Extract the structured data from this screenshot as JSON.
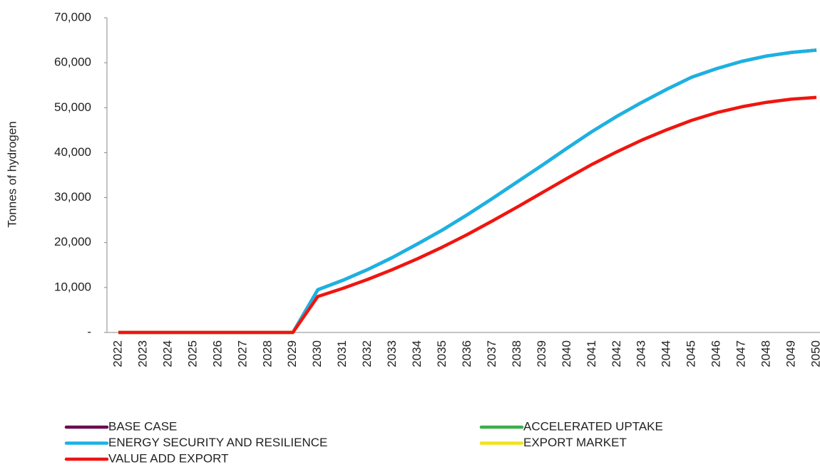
{
  "chart_data": {
    "type": "line",
    "y_label": "Tonnes of hydrogen",
    "categories": [
      "2022",
      "2023",
      "2024",
      "2025",
      "2026",
      "2027",
      "2028",
      "2029",
      "2030",
      "2031",
      "2032",
      "2033",
      "2034",
      "2035",
      "2036",
      "2037",
      "2038",
      "2039",
      "2040",
      "2041",
      "2042",
      "2043",
      "2044",
      "2045",
      "2046",
      "2047",
      "2048",
      "2049",
      "2050"
    ],
    "series": [
      {
        "name": "BASE CASE",
        "color": "#6b0d4f",
        "values": [
          0,
          0,
          0,
          0,
          0,
          0,
          0,
          0,
          9500,
          11600,
          14000,
          16700,
          19700,
          22800,
          26200,
          29800,
          33500,
          37200,
          41000,
          44700,
          48100,
          51200,
          54100,
          56800,
          58700,
          60300,
          61500,
          62300,
          62800
        ]
      },
      {
        "name": "ACCELERATED UPTAKE",
        "color": "#3cae4c",
        "values": [
          0,
          0,
          0,
          0,
          0,
          0,
          0,
          0,
          9500,
          11600,
          14000,
          16700,
          19700,
          22800,
          26200,
          29800,
          33500,
          37200,
          41000,
          44700,
          48100,
          51200,
          54100,
          56800,
          58700,
          60300,
          61500,
          62300,
          62800
        ]
      },
      {
        "name": "ENERGY SECURITY AND RESILIENCE",
        "color": "#19b2e6",
        "values": [
          0,
          0,
          0,
          0,
          0,
          0,
          0,
          0,
          9500,
          11600,
          14000,
          16700,
          19700,
          22800,
          26200,
          29800,
          33500,
          37200,
          41000,
          44700,
          48100,
          51200,
          54100,
          56800,
          58700,
          60300,
          61500,
          62300,
          62800
        ]
      },
      {
        "name": "EXPORT MARKET",
        "color": "#f2e21a",
        "values": [
          0,
          0,
          0,
          0,
          0,
          0,
          0,
          0,
          8000,
          9800,
          11800,
          14000,
          16400,
          19000,
          21800,
          24800,
          27900,
          31100,
          34300,
          37400,
          40200,
          42800,
          45100,
          47200,
          48900,
          50200,
          51200,
          51900,
          52300
        ]
      },
      {
        "name": "VALUE ADD EXPORT",
        "color": "#f01414",
        "values": [
          0,
          0,
          0,
          0,
          0,
          0,
          0,
          0,
          8000,
          9800,
          11800,
          14000,
          16400,
          19000,
          21800,
          24800,
          27900,
          31100,
          34300,
          37400,
          40200,
          42800,
          45100,
          47200,
          48900,
          50200,
          51200,
          51900,
          52300
        ]
      }
    ],
    "ylim": [
      0,
      70000
    ],
    "yticks": [
      {
        "value": 0,
        "label": "-"
      },
      {
        "value": 10000,
        "label": "10,000"
      },
      {
        "value": 20000,
        "label": "20,000"
      },
      {
        "value": 30000,
        "label": "30,000"
      },
      {
        "value": 40000,
        "label": "40,000"
      },
      {
        "value": 50000,
        "label": "50,000"
      },
      {
        "value": 60000,
        "label": "60,000"
      },
      {
        "value": 70000,
        "label": "70,000"
      }
    ],
    "grid": false,
    "legend": "bottom"
  }
}
